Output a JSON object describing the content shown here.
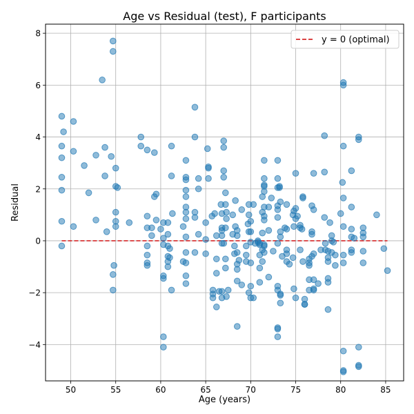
{
  "chart_data": {
    "type": "scatter",
    "title": "Age vs Residual (test), F participants",
    "xlabel": "Age (years)",
    "ylabel": "Residual",
    "xlim": [
      47.2,
      87.0
    ],
    "ylim": [
      -5.4,
      8.35
    ],
    "xticks": [
      50,
      55,
      60,
      65,
      70,
      75,
      80,
      85
    ],
    "yticks": [
      -4,
      -2,
      0,
      2,
      4,
      6,
      8
    ],
    "grid": true,
    "legend": {
      "placement": "upper right",
      "entries": [
        "y = 0 (optimal)"
      ]
    },
    "reference_line": {
      "y": 0,
      "label": "y = 0 (optimal)",
      "color": "#d62728",
      "style": "dashed"
    },
    "series": [
      {
        "marker_color": "#1f77b4",
        "points": [
          [
            49.0,
            4.8
          ],
          [
            49.2,
            4.2
          ],
          [
            49.0,
            3.65
          ],
          [
            49.0,
            3.2
          ],
          [
            49.0,
            2.45
          ],
          [
            49.0,
            1.95
          ],
          [
            49.0,
            0.75
          ],
          [
            49.0,
            -0.2
          ],
          [
            50.3,
            4.6
          ],
          [
            50.3,
            3.45
          ],
          [
            50.3,
            0.55
          ],
          [
            51.5,
            2.9
          ],
          [
            52.0,
            1.85
          ],
          [
            52.8,
            3.3
          ],
          [
            52.8,
            0.8
          ],
          [
            53.5,
            6.2
          ],
          [
            53.8,
            3.6
          ],
          [
            53.8,
            2.5
          ],
          [
            54.0,
            0.35
          ],
          [
            54.7,
            7.7
          ],
          [
            54.7,
            7.3
          ],
          [
            54.5,
            3.25
          ],
          [
            55.0,
            2.1
          ],
          [
            55.2,
            2.05
          ],
          [
            55.0,
            2.8
          ],
          [
            55.0,
            1.1
          ],
          [
            55.0,
            0.75
          ],
          [
            55.0,
            0.55
          ],
          [
            54.8,
            -0.95
          ],
          [
            54.7,
            -1.3
          ],
          [
            54.7,
            -1.9
          ],
          [
            56.5,
            0.7
          ],
          [
            57.8,
            4.0
          ],
          [
            57.8,
            3.65
          ],
          [
            58.5,
            3.5
          ],
          [
            58.5,
            0.95
          ],
          [
            58.5,
            0.5
          ],
          [
            58.5,
            -0.2
          ],
          [
            58.5,
            -0.55
          ],
          [
            58.5,
            -0.85
          ],
          [
            58.5,
            -0.95
          ],
          [
            59.0,
            0.5
          ],
          [
            59.0,
            0.2
          ],
          [
            59.3,
            1.7
          ],
          [
            59.5,
            1.8
          ],
          [
            59.5,
            0.8
          ],
          [
            59.3,
            3.4
          ],
          [
            60.0,
            0.45
          ],
          [
            60.3,
            0.7
          ],
          [
            60.3,
            0.1
          ],
          [
            60.3,
            -0.15
          ],
          [
            60.3,
            -1.35
          ],
          [
            60.3,
            -1.45
          ],
          [
            60.3,
            -3.7
          ],
          [
            60.3,
            -4.1
          ],
          [
            60.8,
            0.7
          ],
          [
            60.8,
            0.25
          ],
          [
            60.8,
            -0.2
          ],
          [
            60.8,
            -0.6
          ],
          [
            60.8,
            -0.8
          ],
          [
            60.8,
            -1.0
          ],
          [
            61.2,
            3.65
          ],
          [
            61.2,
            2.5
          ],
          [
            61.3,
            1.05
          ],
          [
            61.0,
            -0.3
          ],
          [
            61.0,
            -0.65
          ],
          [
            61.2,
            -1.9
          ],
          [
            62.5,
            0.55
          ],
          [
            62.5,
            -0.8
          ],
          [
            62.8,
            3.1
          ],
          [
            62.8,
            2.45
          ],
          [
            62.8,
            2.35
          ],
          [
            62.8,
            1.95
          ],
          [
            62.8,
            1.7
          ],
          [
            62.8,
            1.3
          ],
          [
            62.8,
            1.1
          ],
          [
            62.8,
            0.85
          ],
          [
            62.8,
            0.15
          ],
          [
            62.8,
            -0.45
          ],
          [
            62.8,
            -0.85
          ],
          [
            62.8,
            -1.35
          ],
          [
            62.8,
            -1.65
          ],
          [
            63.8,
            5.15
          ],
          [
            63.8,
            4.0
          ],
          [
            63.8,
            1.1
          ],
          [
            63.8,
            0.9
          ],
          [
            63.8,
            -0.45
          ],
          [
            64.2,
            2.4
          ],
          [
            64.2,
            2.0
          ],
          [
            64.2,
            0.25
          ],
          [
            65.0,
            0.7
          ],
          [
            65.0,
            0.05
          ],
          [
            65.0,
            -0.5
          ],
          [
            65.2,
            3.55
          ],
          [
            65.3,
            2.85
          ],
          [
            65.3,
            2.8
          ],
          [
            65.3,
            2.4
          ],
          [
            65.7,
            0.95
          ],
          [
            65.8,
            -1.9
          ],
          [
            65.8,
            -2.05
          ],
          [
            65.8,
            -2.2
          ],
          [
            66.0,
            1.05
          ],
          [
            66.2,
            0.2
          ],
          [
            66.2,
            -0.7
          ],
          [
            66.2,
            -1.25
          ],
          [
            66.2,
            -2.55
          ],
          [
            66.5,
            -1.95
          ],
          [
            66.7,
            1.4
          ],
          [
            66.8,
            1.05
          ],
          [
            66.8,
            0.5
          ],
          [
            66.8,
            0.4
          ],
          [
            66.8,
            0.2
          ],
          [
            66.8,
            -0.1
          ],
          [
            66.8,
            -1.95
          ],
          [
            66.8,
            -2.2
          ],
          [
            67.0,
            3.85
          ],
          [
            67.0,
            3.6
          ],
          [
            67.0,
            2.7
          ],
          [
            67.0,
            2.45
          ],
          [
            67.0,
            -0.1
          ],
          [
            67.2,
            1.85
          ],
          [
            67.2,
            1.4
          ],
          [
            67.3,
            1.1
          ],
          [
            67.3,
            0.85
          ],
          [
            67.2,
            0.5
          ],
          [
            67.2,
            -0.7
          ],
          [
            67.2,
            -1.05
          ],
          [
            67.5,
            -1.9
          ],
          [
            67.3,
            -2.15
          ],
          [
            68.0,
            1.0
          ],
          [
            68.0,
            0.25
          ],
          [
            68.2,
            -0.2
          ],
          [
            68.2,
            -0.5
          ],
          [
            68.3,
            1.55
          ],
          [
            68.3,
            0.55
          ],
          [
            68.5,
            0.4
          ],
          [
            68.5,
            0.2
          ],
          [
            68.5,
            -0.45
          ],
          [
            68.5,
            -1.1
          ],
          [
            68.5,
            -1.55
          ],
          [
            68.5,
            -3.3
          ],
          [
            68.7,
            -0.75
          ],
          [
            68.5,
            -0.9
          ],
          [
            69.0,
            1.2
          ],
          [
            69.0,
            -1.7
          ],
          [
            69.5,
            -0.2
          ],
          [
            69.5,
            -0.55
          ],
          [
            69.5,
            -0.8
          ],
          [
            69.7,
            0.65
          ],
          [
            69.8,
            0.35
          ],
          [
            69.8,
            1.4
          ],
          [
            69.8,
            1.0
          ],
          [
            69.8,
            -2.0
          ],
          [
            70.0,
            0.75
          ],
          [
            70.0,
            0.35
          ],
          [
            70.0,
            -0.05
          ],
          [
            70.0,
            -0.85
          ],
          [
            70.0,
            -1.75
          ],
          [
            70.0,
            -2.2
          ],
          [
            70.3,
            -2.2
          ],
          [
            70.3,
            1.4
          ],
          [
            70.5,
            -0.1
          ],
          [
            70.8,
            0.0
          ],
          [
            70.8,
            -0.05
          ],
          [
            71.0,
            -0.1
          ],
          [
            71.0,
            -0.15
          ],
          [
            71.0,
            -0.55
          ],
          [
            71.0,
            -1.05
          ],
          [
            71.0,
            -1.6
          ],
          [
            71.3,
            1.7
          ],
          [
            71.3,
            1.1
          ],
          [
            71.3,
            0.3
          ],
          [
            71.3,
            -0.35
          ],
          [
            71.3,
            -0.8
          ],
          [
            71.5,
            -0.15
          ],
          [
            71.5,
            3.1
          ],
          [
            71.5,
            2.4
          ],
          [
            71.5,
            2.15
          ],
          [
            71.5,
            2.1
          ],
          [
            71.5,
            1.9
          ],
          [
            71.5,
            1.3
          ],
          [
            71.5,
            0.95
          ],
          [
            71.5,
            0.8
          ],
          [
            71.5,
            -0.45
          ],
          [
            71.5,
            -0.2
          ],
          [
            72.0,
            1.3
          ],
          [
            72.0,
            0.4
          ],
          [
            72.0,
            -1.4
          ],
          [
            72.3,
            1.65
          ],
          [
            72.5,
            -0.4
          ],
          [
            73.0,
            3.1
          ],
          [
            73.0,
            2.4
          ],
          [
            73.0,
            2.05
          ],
          [
            73.0,
            1.35
          ],
          [
            73.0,
            1.2
          ],
          [
            73.0,
            0.9
          ],
          [
            73.0,
            -0.1
          ],
          [
            73.0,
            -1.75
          ],
          [
            73.0,
            -1.9
          ],
          [
            73.0,
            -3.35
          ],
          [
            73.0,
            -3.4
          ],
          [
            73.0,
            -3.7
          ],
          [
            73.2,
            2.1
          ],
          [
            73.2,
            2.05
          ],
          [
            73.3,
            1.5
          ],
          [
            73.3,
            0.35
          ],
          [
            73.3,
            0.15
          ],
          [
            73.5,
            -0.6
          ],
          [
            73.3,
            -2.05
          ],
          [
            73.3,
            -2.1
          ],
          [
            73.3,
            -2.4
          ],
          [
            73.8,
            0.5
          ],
          [
            74.0,
            1.4
          ],
          [
            74.0,
            0.45
          ],
          [
            74.0,
            -0.5
          ],
          [
            74.0,
            -0.35
          ],
          [
            74.0,
            -0.8
          ],
          [
            74.3,
            -0.9
          ],
          [
            74.7,
            1.0
          ],
          [
            74.7,
            -0.65
          ],
          [
            74.8,
            -1.85
          ],
          [
            74.8,
            0.55
          ],
          [
            74.8,
            1.15
          ],
          [
            75.0,
            2.6
          ],
          [
            75.0,
            1.25
          ],
          [
            75.0,
            0.85
          ],
          [
            75.0,
            -2.2
          ],
          [
            75.2,
            0.95
          ],
          [
            75.5,
            0.6
          ],
          [
            75.5,
            0.5
          ],
          [
            75.5,
            -0.35
          ],
          [
            75.7,
            0.45
          ],
          [
            75.8,
            -0.8
          ],
          [
            75.8,
            1.65
          ],
          [
            75.8,
            1.7
          ],
          [
            76.0,
            -2.25
          ],
          [
            76.0,
            -2.45
          ],
          [
            76.0,
            -2.45
          ],
          [
            76.5,
            -0.7
          ],
          [
            76.5,
            -0.85
          ],
          [
            76.5,
            -0.95
          ],
          [
            76.5,
            -1.5
          ],
          [
            76.5,
            -1.9
          ],
          [
            76.8,
            1.35
          ],
          [
            76.8,
            0.35
          ],
          [
            76.8,
            0.25
          ],
          [
            76.8,
            -0.6
          ],
          [
            77.0,
            2.6
          ],
          [
            77.0,
            1.2
          ],
          [
            77.0,
            -0.5
          ],
          [
            77.0,
            -1.5
          ],
          [
            77.0,
            -1.9
          ],
          [
            77.0,
            -1.85
          ],
          [
            77.5,
            -1.65
          ],
          [
            77.8,
            -0.35
          ],
          [
            78.2,
            4.05
          ],
          [
            78.2,
            2.65
          ],
          [
            78.2,
            0.9
          ],
          [
            78.3,
            -0.35
          ],
          [
            78.3,
            -0.1
          ],
          [
            78.6,
            -0.4
          ],
          [
            78.6,
            -0.65
          ],
          [
            78.6,
            -0.8
          ],
          [
            78.6,
            -1.45
          ],
          [
            78.6,
            -1.6
          ],
          [
            78.6,
            -2.65
          ],
          [
            78.8,
            0.7
          ],
          [
            79.0,
            0.2
          ],
          [
            79.0,
            0.0
          ],
          [
            79.0,
            -0.45
          ],
          [
            79.2,
            -0.05
          ],
          [
            79.4,
            -0.55
          ],
          [
            79.4,
            -0.95
          ],
          [
            80.0,
            1.05
          ],
          [
            80.2,
            2.25
          ],
          [
            80.3,
            6.1
          ],
          [
            80.3,
            6.0
          ],
          [
            80.3,
            3.65
          ],
          [
            80.3,
            1.65
          ],
          [
            80.3,
            0.55
          ],
          [
            80.3,
            -0.55
          ],
          [
            80.3,
            -0.85
          ],
          [
            80.3,
            -4.25
          ],
          [
            80.3,
            -5.0
          ],
          [
            80.3,
            -5.05
          ],
          [
            81.2,
            2.7
          ],
          [
            81.2,
            1.3
          ],
          [
            81.2,
            0.45
          ],
          [
            81.2,
            0.15
          ],
          [
            81.2,
            -0.35
          ],
          [
            81.2,
            -0.45
          ],
          [
            81.5,
            0.1
          ],
          [
            82.0,
            -4.1
          ],
          [
            82.0,
            -4.8
          ],
          [
            82.0,
            -4.85
          ],
          [
            82.0,
            4.0
          ],
          [
            82.0,
            3.9
          ],
          [
            82.5,
            0.5
          ],
          [
            82.5,
            0.3
          ],
          [
            82.5,
            0.15
          ],
          [
            82.5,
            -0.4
          ],
          [
            82.5,
            -0.85
          ],
          [
            84.0,
            1.0
          ],
          [
            84.8,
            -0.3
          ],
          [
            85.2,
            -1.15
          ]
        ]
      }
    ]
  }
}
